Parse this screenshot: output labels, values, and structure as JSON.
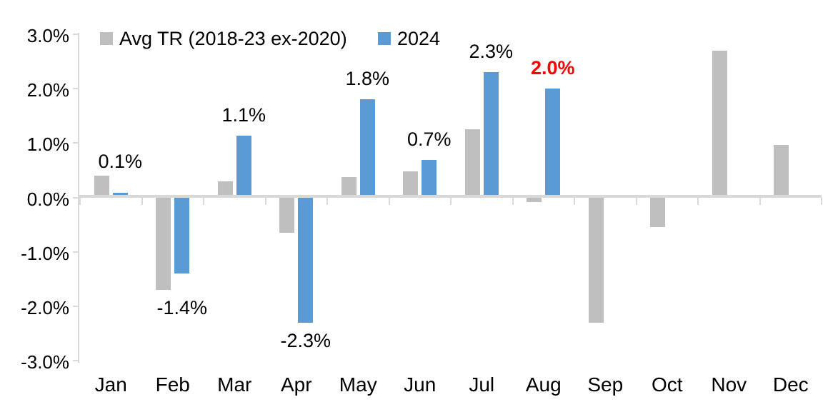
{
  "colors": {
    "gray_series": "#BFBFBF",
    "blue_series": "#5B9BD5",
    "highlight_red": "#FF0000",
    "axis_line": "#D9D9D9",
    "text": "#000000",
    "background": "#FFFFFF"
  },
  "legend": {
    "items": [
      {
        "label": "Avg TR (2018-23 ex-2020)",
        "color": "#BFBFBF"
      },
      {
        "label": "2024",
        "color": "#5B9BD5"
      }
    ]
  },
  "axes": {
    "y_tick_labels": [
      "3.0%",
      "2.0%",
      "1.0%",
      "0.0%",
      "-1.0%",
      "-2.0%",
      "-3.0%"
    ],
    "y_tick_values": [
      3,
      2,
      1,
      0,
      -1,
      -2,
      -3
    ],
    "x_labels": [
      "Jan",
      "Feb",
      "Mar",
      "Apr",
      "May",
      "Jun",
      "Jul",
      "Aug",
      "Sep",
      "Oct",
      "Nov",
      "Dec"
    ]
  },
  "chart_data": {
    "type": "bar",
    "title": "",
    "xlabel": "",
    "ylabel": "",
    "ylim": [
      -3,
      3
    ],
    "grid": false,
    "legend_position": "top",
    "categories": [
      "Jan",
      "Feb",
      "Mar",
      "Apr",
      "May",
      "Jun",
      "Jul",
      "Aug",
      "Sep",
      "Oct",
      "Nov",
      "Dec"
    ],
    "series": [
      {
        "name": "Avg TR (2018-23 ex-2020)",
        "color": "#BFBFBF",
        "values": [
          0.4,
          -1.7,
          0.3,
          -0.65,
          0.37,
          0.48,
          1.25,
          -0.08,
          -2.3,
          -0.55,
          2.7,
          0.97
        ]
      },
      {
        "name": "2024",
        "color": "#5B9BD5",
        "values": [
          0.06,
          -1.4,
          1.13,
          -2.3,
          1.8,
          0.69,
          2.3,
          2.0,
          null,
          null,
          null,
          null
        ]
      }
    ],
    "data_labels": [
      {
        "month": 0,
        "text": "0.1%",
        "color": "#000000",
        "bold": false,
        "anchor": 0.28
      },
      {
        "month": 1,
        "text": "-1.4%",
        "color": "#000000",
        "bold": false,
        "anchor": -1.7
      },
      {
        "month": 2,
        "text": "1.1%",
        "color": "#000000",
        "bold": false,
        "anchor": 1.13
      },
      {
        "month": 3,
        "text": "-2.3%",
        "color": "#000000",
        "bold": false,
        "anchor": -2.3
      },
      {
        "month": 4,
        "text": "1.8%",
        "color": "#000000",
        "bold": false,
        "anchor": 1.8
      },
      {
        "month": 5,
        "text": "0.7%",
        "color": "#000000",
        "bold": false,
        "anchor": 0.69
      },
      {
        "month": 6,
        "text": "2.3%",
        "color": "#000000",
        "bold": false,
        "anchor": 2.3
      },
      {
        "month": 7,
        "text": "2.0%",
        "color": "#FF0000",
        "bold": true,
        "anchor": 2.0
      }
    ]
  }
}
